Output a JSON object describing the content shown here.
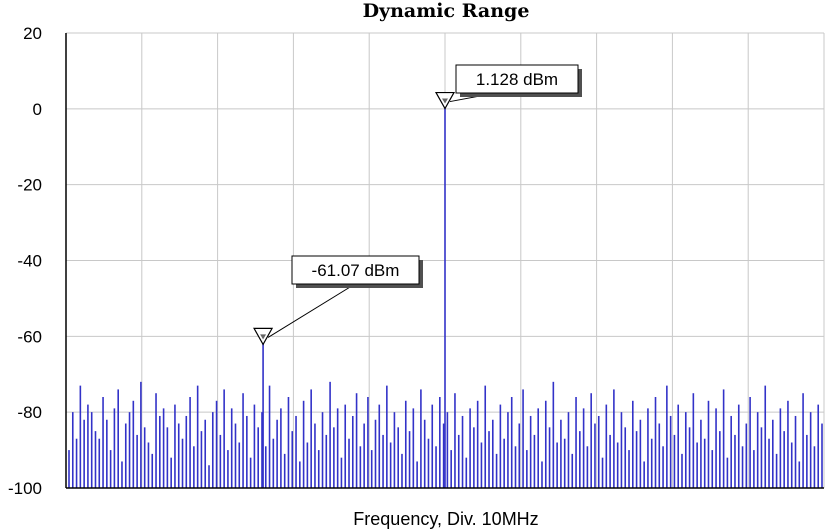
{
  "chart_data": {
    "type": "bar",
    "title": "Dynamic Range",
    "xlabel": "Frequency, Div. 10MHz",
    "ylabel": "",
    "ylim": [
      -100,
      20
    ],
    "ytick_labels": [
      "20",
      "0",
      "-20",
      "-40",
      "-60",
      "-80",
      "-100"
    ],
    "ytick_values": [
      20,
      0,
      -20,
      -40,
      -60,
      -80,
      -100
    ],
    "x_divisions": 10,
    "grid": true,
    "colors": {
      "trace": "#3232c8",
      "grid": "#c8c8c8",
      "axis": "#000000",
      "shadow": "#505050"
    },
    "markers": [
      {
        "label": "1.128 dBm",
        "value": 1.128,
        "x_div": 5.0
      },
      {
        "label": "-61.07 dBm",
        "value": -61.07,
        "x_div": 2.6
      }
    ],
    "noise_floor": [
      -90,
      -80,
      -87,
      -73,
      -82,
      -78,
      -80,
      -85,
      -87,
      -76,
      -82,
      -90,
      -79,
      -74,
      -93,
      -83,
      -80,
      -77,
      -86,
      -72,
      -84,
      -88,
      -91,
      -75,
      -81,
      -79,
      -84,
      -92,
      -78,
      -83,
      -87,
      -81,
      -76,
      -89,
      -73,
      -85,
      -82,
      -94,
      -80,
      -77,
      -86,
      -74,
      -90,
      -79,
      -83,
      -88,
      -75,
      -81,
      -92,
      -78,
      -84,
      -80,
      -89,
      -73,
      -87,
      -82,
      -79,
      -91,
      -76,
      -85,
      -81,
      -93,
      -77,
      -88,
      -74,
      -83,
      -90,
      -80,
      -86,
      -72,
      -84,
      -79,
      -92,
      -78,
      -87,
      -81,
      -75,
      -89,
      -83,
      -76,
      -90,
      -82,
      -78,
      -86,
      -73,
      -88,
      -80,
      -84,
      -91,
      -77,
      -85,
      -79,
      -93,
      -74,
      -82,
      -87,
      -78,
      -89,
      -76,
      -83,
      -80,
      -90,
      -75,
      -86,
      -81,
      -92,
      -79,
      -84,
      -77,
      -88,
      -73,
      -85,
      -82,
      -91,
      -78,
      -87,
      -80,
      -76,
      -89,
      -83,
      -74,
      -90,
      -81,
      -86,
      -79,
      -93,
      -77,
      -84,
      -72,
      -88,
      -82,
      -87,
      -80,
      -91,
      -76,
      -85,
      -79,
      -89,
      -75,
      -83,
      -81,
      -92,
      -78,
      -86,
      -74,
      -88,
      -80,
      -84,
      -90,
      -77,
      -85,
      -82,
      -93,
      -79,
      -87,
      -76,
      -83,
      -89,
      -73,
      -81,
      -86,
      -78,
      -91,
      -80,
      -84,
      -75,
      -88,
      -82,
      -87,
      -77,
      -90,
      -79,
      -85,
      -74,
      -92,
      -81,
      -86,
      -78,
      -89,
      -83,
      -76,
      -90,
      -80,
      -84,
      -73,
      -87,
      -82,
      -91,
      -79,
      -85,
      -77,
      -88,
      -81,
      -93,
      -75,
      -86,
      -80,
      -89,
      -78,
      -83
    ]
  }
}
